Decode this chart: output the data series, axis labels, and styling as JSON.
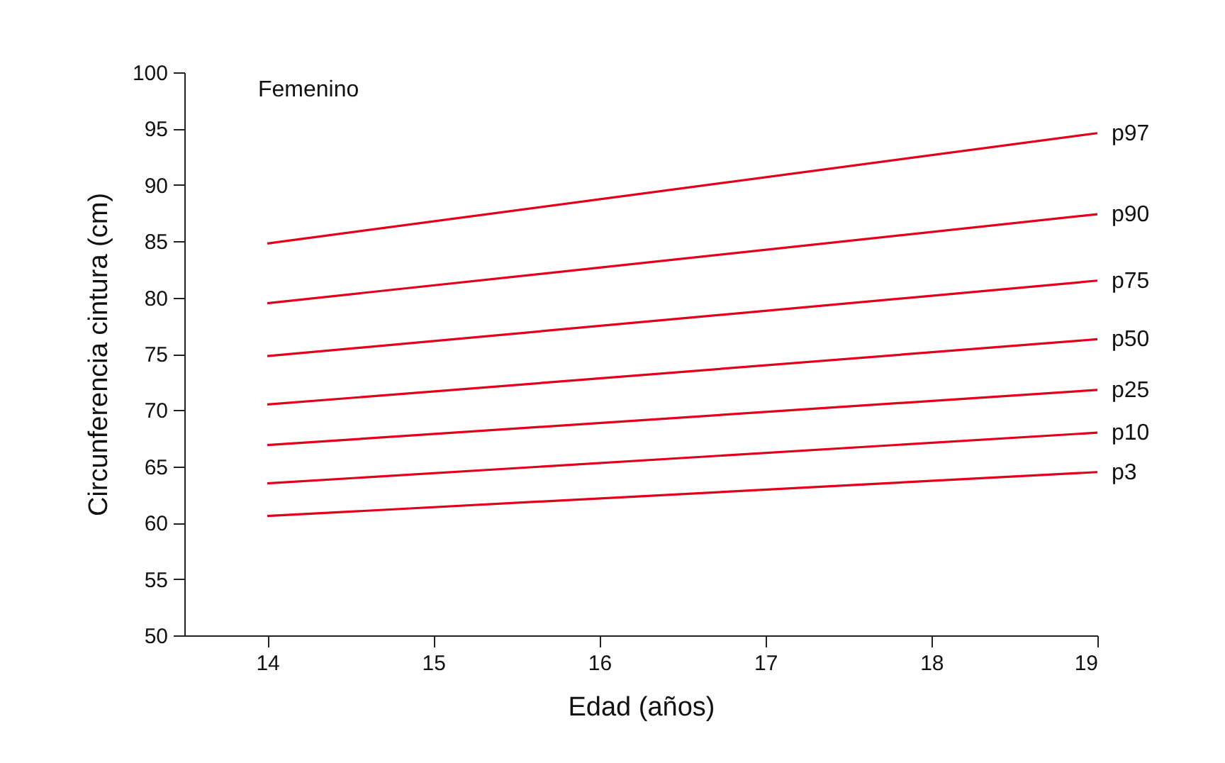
{
  "chart_data": {
    "type": "line",
    "xlabel": "Edad (años)",
    "ylabel": "Circunferencia cintura (cm)",
    "annotations": [
      "Femenino"
    ],
    "x": [
      14,
      19
    ],
    "xlim": [
      13.5,
      19
    ],
    "xticks": [
      14,
      15,
      16,
      17,
      18,
      19
    ],
    "ylim": [
      50,
      100
    ],
    "yticks": [
      50,
      55,
      60,
      65,
      70,
      75,
      80,
      85,
      90,
      95,
      100
    ],
    "grid": false,
    "legend": false,
    "marker": "none",
    "line_style": "solid",
    "series": [
      {
        "name": "p97",
        "color": "#e2001a",
        "values": [
          84.8,
          94.6
        ]
      },
      {
        "name": "p90",
        "color": "#e2001a",
        "values": [
          79.5,
          87.4
        ]
      },
      {
        "name": "p75",
        "color": "#e2001a",
        "values": [
          74.8,
          81.5
        ]
      },
      {
        "name": "p50",
        "color": "#e2001a",
        "values": [
          70.5,
          76.3
        ]
      },
      {
        "name": "p25",
        "color": "#e2001a",
        "values": [
          66.9,
          71.8
        ]
      },
      {
        "name": "p10",
        "color": "#e2001a",
        "values": [
          63.5,
          68.0
        ]
      },
      {
        "name": "p3",
        "color": "#e2001a",
        "values": [
          60.6,
          64.5
        ]
      }
    ]
  }
}
